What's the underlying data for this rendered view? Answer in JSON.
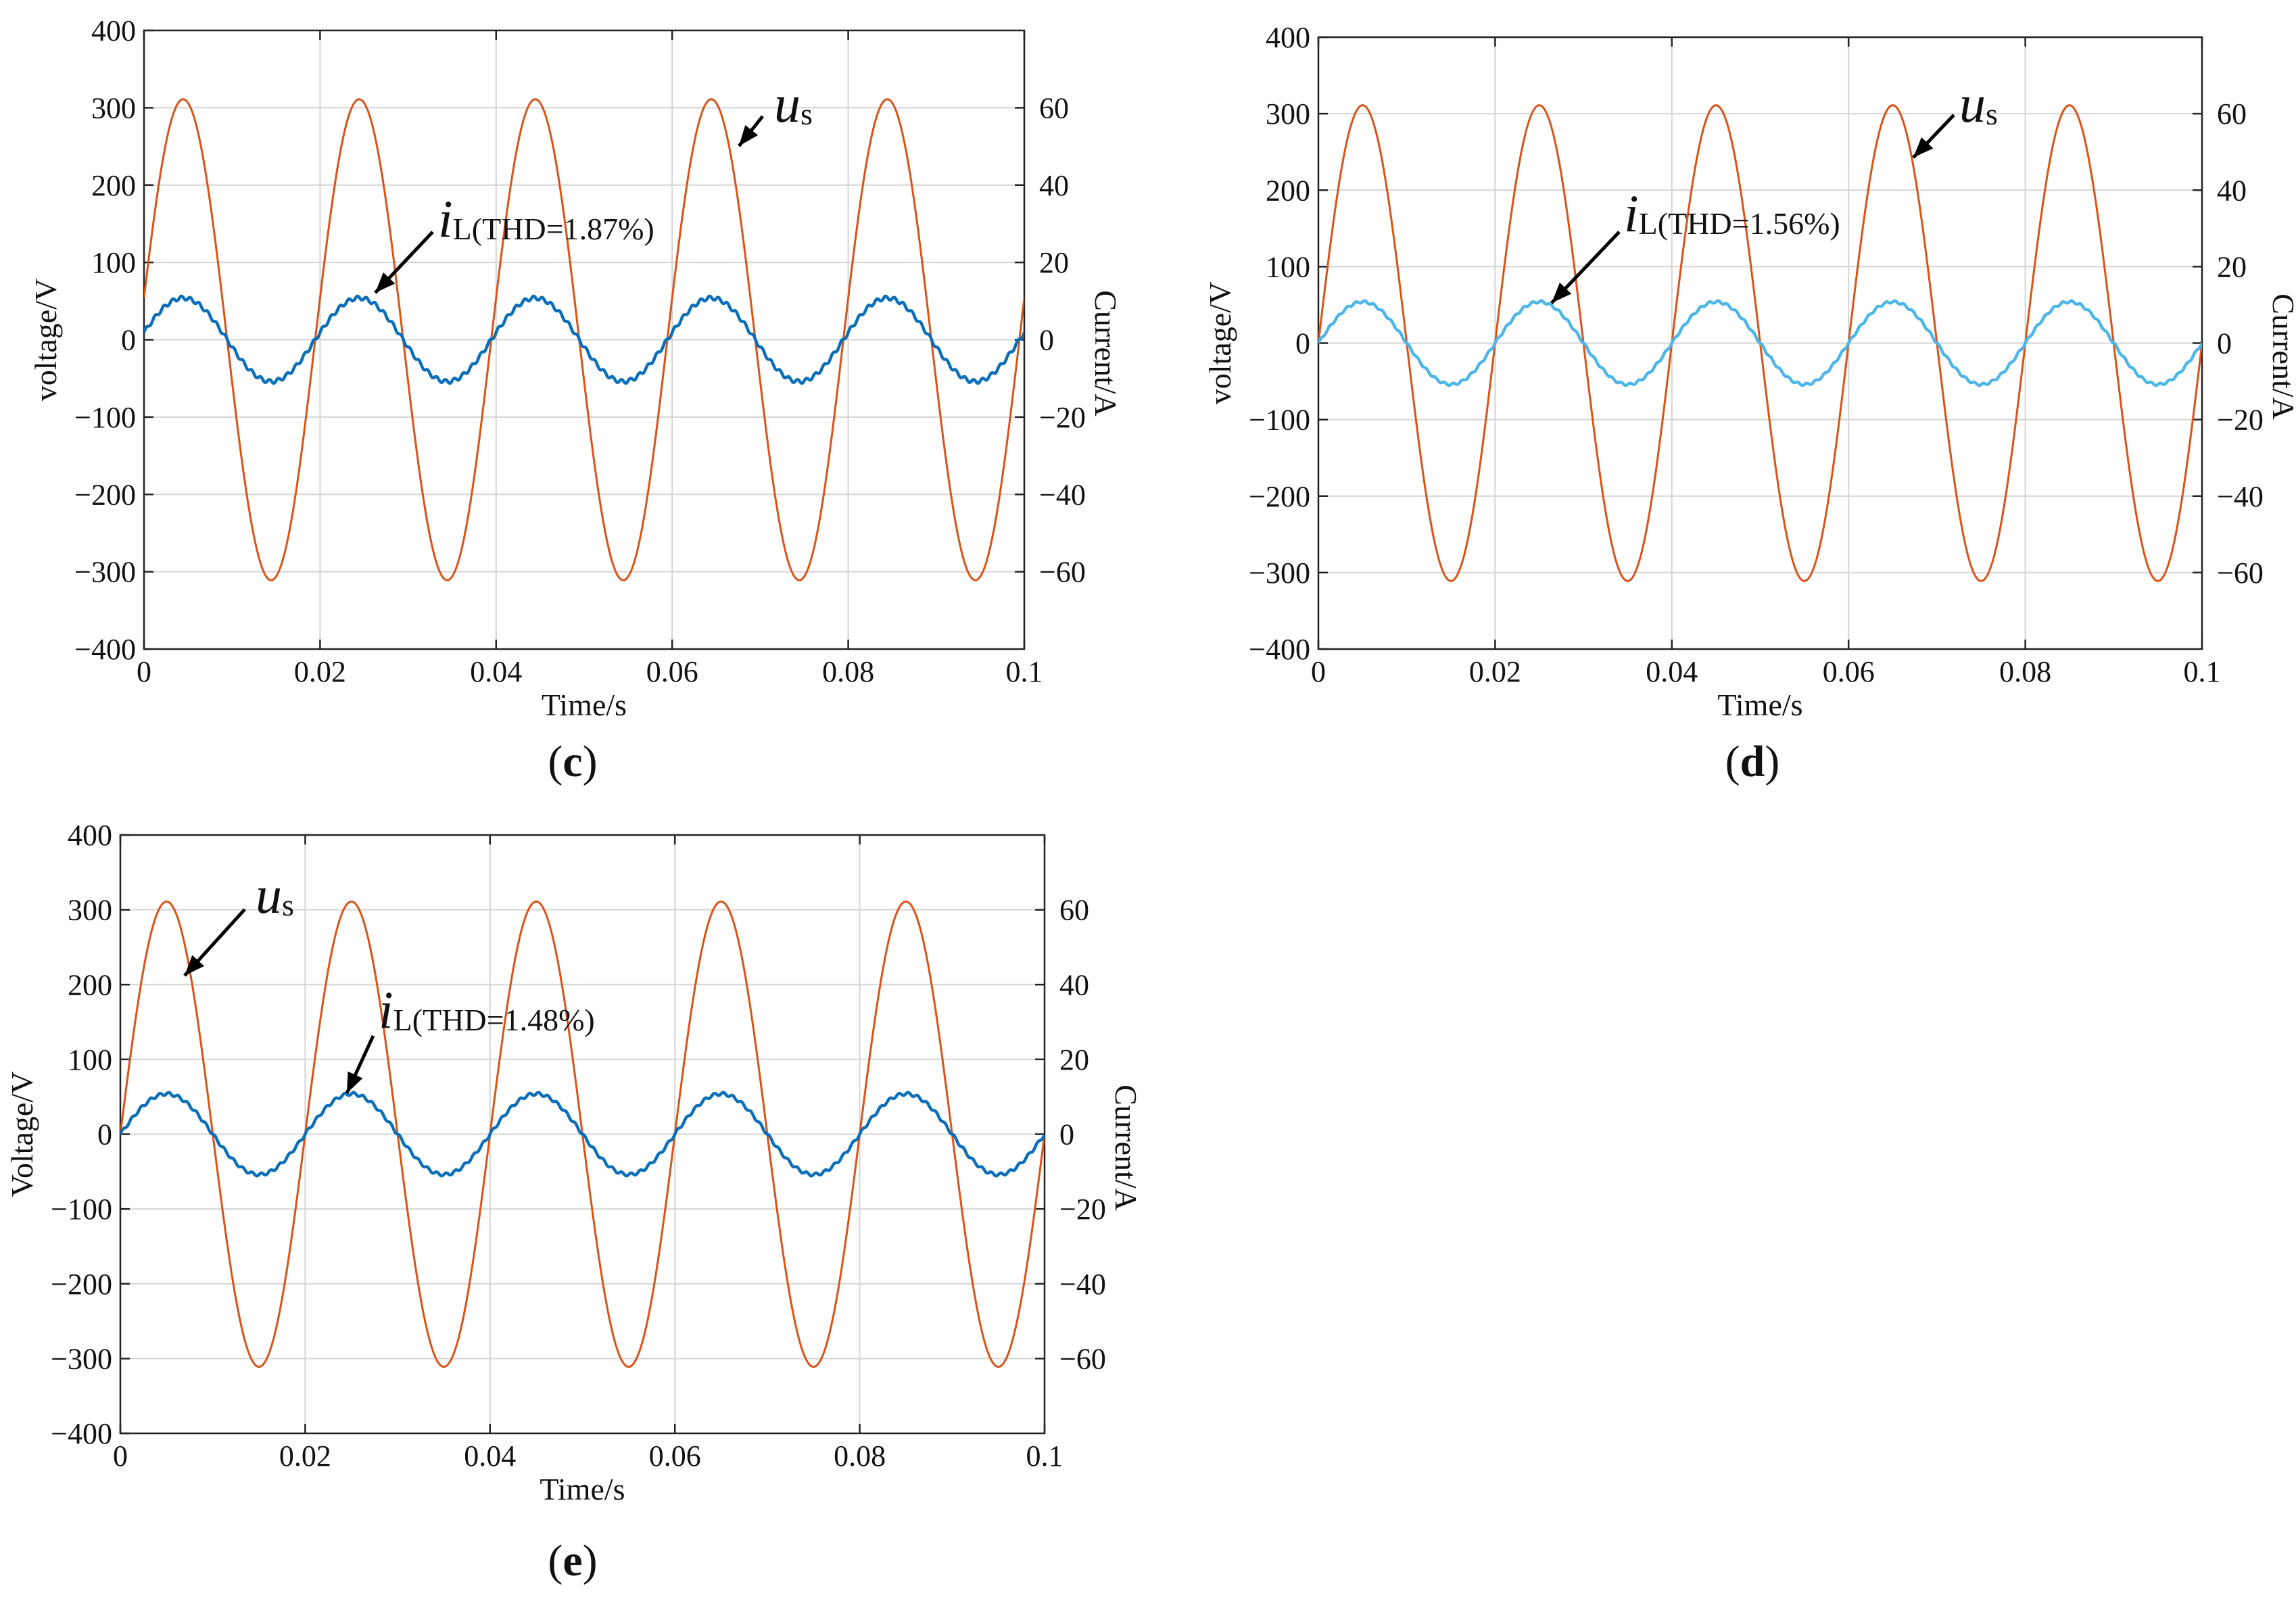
{
  "figure": {
    "panels_note": "Three dual-axis panels: voltage (left axis) and current (right axis) versus time"
  },
  "chart_data": [
    {
      "type": "line",
      "panel_label": "c",
      "panel_label_text": "(c)",
      "xlabel": "Time/s",
      "ylabel": "voltage/V",
      "y2label": "Current/A",
      "xlim": [
        0,
        0.1
      ],
      "ylim": [
        -400,
        400
      ],
      "y2lim": [
        -80,
        80
      ],
      "xticks": [
        0,
        0.02,
        0.04,
        0.06,
        0.08,
        0.1
      ],
      "xtick_labels": [
        "0",
        "0.02",
        "0.04",
        "0.06",
        "0.08",
        "0.1"
      ],
      "yticks": [
        -400,
        -300,
        -200,
        -100,
        0,
        100,
        200,
        300,
        400
      ],
      "ytick_labels": [
        "−400",
        "−300",
        "−200",
        "−100",
        "0",
        "100",
        "200",
        "300",
        "400"
      ],
      "y2ticks": [
        -60,
        -40,
        -20,
        0,
        20,
        40,
        60
      ],
      "y2tick_labels": [
        "−60",
        "−40",
        "−20",
        "0",
        "20",
        "40",
        "60"
      ],
      "grid": true,
      "series": [
        {
          "name": "u_s",
          "axis": "left",
          "color": "#d95319",
          "amplitude": 311,
          "frequency": 50,
          "phase_deg": 10,
          "ripple": 0
        },
        {
          "name": "i_L",
          "axis": "right",
          "color": "#0a6fb8",
          "amplitude": 10.8,
          "frequency": 50,
          "phase_deg": 10,
          "ripple": 0.5
        }
      ],
      "annotations": [
        {
          "target": "u_s",
          "symbol": "u",
          "subscript": "s",
          "suffix": ""
        },
        {
          "target": "i_L",
          "symbol": "i",
          "subscript": "L",
          "suffix": "(THD=1.87%)"
        }
      ]
    },
    {
      "type": "line",
      "panel_label": "d",
      "panel_label_text": "(d)",
      "xlabel": "Time/s",
      "ylabel": "voltage/V",
      "y2label": "Current/A",
      "xlim": [
        0,
        0.1
      ],
      "ylim": [
        -400,
        400
      ],
      "y2lim": [
        -80,
        80
      ],
      "xticks": [
        0,
        0.02,
        0.04,
        0.06,
        0.08,
        0.1
      ],
      "xtick_labels": [
        "0",
        "0.02",
        "0.04",
        "0.06",
        "0.08",
        "0.1"
      ],
      "yticks": [
        -400,
        -300,
        -200,
        -100,
        0,
        100,
        200,
        300,
        400
      ],
      "ytick_labels": [
        "−400",
        "−300",
        "−200",
        "−100",
        "0",
        "100",
        "200",
        "300",
        "400"
      ],
      "y2ticks": [
        -60,
        -40,
        -20,
        0,
        20,
        40,
        60
      ],
      "y2tick_labels": [
        "−60",
        "−40",
        "−20",
        "0",
        "20",
        "40",
        "60"
      ],
      "grid": true,
      "series": [
        {
          "name": "u_s",
          "axis": "left",
          "color": "#d95319",
          "amplitude": 311,
          "frequency": 50,
          "phase_deg": 0,
          "ripple": 0
        },
        {
          "name": "i_L",
          "axis": "right",
          "color": "#4db6e8",
          "amplitude": 10.8,
          "frequency": 50,
          "phase_deg": 0,
          "ripple": 0.3
        }
      ],
      "annotations": [
        {
          "target": "u_s",
          "symbol": "u",
          "subscript": "s",
          "suffix": ""
        },
        {
          "target": "i_L",
          "symbol": "i",
          "subscript": "L",
          "suffix": "(THD=1.56%)"
        }
      ]
    },
    {
      "type": "line",
      "panel_label": "e",
      "panel_label_text": "(e)",
      "xlabel": "Time/s",
      "ylabel": "Voltage/V",
      "y2label": "Current/A",
      "xlim": [
        0,
        0.1
      ],
      "ylim": [
        -400,
        400
      ],
      "y2lim": [
        -80,
        80
      ],
      "xticks": [
        0,
        0.02,
        0.04,
        0.06,
        0.08,
        0.1
      ],
      "xtick_labels": [
        "0",
        "0.02",
        "0.04",
        "0.06",
        "0.08",
        "0.1"
      ],
      "yticks": [
        -400,
        -300,
        -200,
        -100,
        0,
        100,
        200,
        300,
        400
      ],
      "ytick_labels": [
        "−400",
        "−300",
        "−200",
        "−100",
        "0",
        "100",
        "200",
        "300",
        "400"
      ],
      "y2ticks": [
        -60,
        -40,
        -20,
        0,
        20,
        40,
        60
      ],
      "y2tick_labels": [
        "−60",
        "−40",
        "−20",
        "0",
        "20",
        "40",
        "60"
      ],
      "grid": true,
      "series": [
        {
          "name": "u_s",
          "axis": "left",
          "color": "#d95319",
          "amplitude": 311,
          "frequency": 50,
          "phase_deg": 0,
          "ripple": 0
        },
        {
          "name": "i_L",
          "axis": "right",
          "color": "#0a6fb8",
          "amplitude": 10.8,
          "frequency": 50,
          "phase_deg": 0,
          "ripple": 0.4
        }
      ],
      "annotations": [
        {
          "target": "u_s",
          "symbol": "u",
          "subscript": "s",
          "suffix": ""
        },
        {
          "target": "i_L",
          "symbol": "i",
          "subscript": "L",
          "suffix": "(THD=1.48%)"
        }
      ]
    }
  ]
}
